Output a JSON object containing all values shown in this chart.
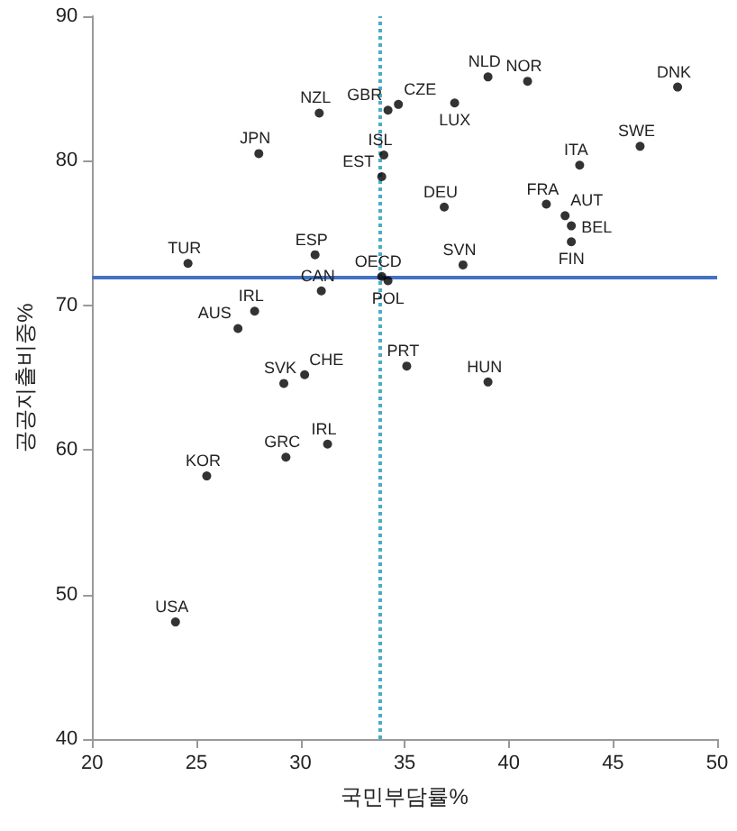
{
  "chart_data": {
    "type": "scatter",
    "xlabel": "국민부담률%",
    "ylabel": "공공지출비중%",
    "x": [
      24.6,
      30.9,
      28.0,
      34.2,
      34.7,
      34.0,
      33.9,
      30.7,
      31.0,
      33.9,
      34.2,
      27.8,
      27.0,
      29.2,
      30.2,
      35.1,
      29.3,
      31.3,
      25.5,
      24.0,
      37.4,
      39.0,
      40.9,
      48.1,
      46.3,
      43.4,
      36.9,
      41.8,
      42.7,
      43.0,
      43.0,
      37.8,
      39.0
    ],
    "values": [
      72.9,
      83.3,
      80.5,
      83.5,
      83.9,
      80.4,
      78.9,
      73.5,
      71.0,
      72.0,
      71.7,
      69.6,
      68.4,
      64.6,
      65.2,
      65.8,
      59.5,
      60.4,
      58.2,
      48.1,
      84.0,
      85.8,
      85.5,
      85.1,
      81.0,
      79.7,
      76.8,
      77.0,
      76.2,
      75.5,
      74.4,
      72.8,
      64.7
    ],
    "color": "#000000",
    "marker": "circle",
    "annotations": [
      {
        "text": "TUR",
        "x": 24.6,
        "y": 72.9
      },
      {
        "text": "NZL",
        "x": 30.9,
        "y": 83.3
      },
      {
        "text": "JPN",
        "x": 28.0,
        "y": 80.5
      },
      {
        "text": "GBR",
        "x": 34.2,
        "y": 83.5
      },
      {
        "text": "CZE",
        "x": 34.7,
        "y": 83.9
      },
      {
        "text": "ISL",
        "x": 34.0,
        "y": 80.4
      },
      {
        "text": "EST",
        "x": 33.9,
        "y": 78.9
      },
      {
        "text": "ESP",
        "x": 30.7,
        "y": 73.5
      },
      {
        "text": "CAN",
        "x": 31.0,
        "y": 71.0
      },
      {
        "text": "OECD",
        "x": 33.9,
        "y": 72.0
      },
      {
        "text": "POL",
        "x": 34.2,
        "y": 71.7
      },
      {
        "text": "IRL",
        "x": 27.8,
        "y": 69.6
      },
      {
        "text": "AUS",
        "x": 27.0,
        "y": 68.4
      },
      {
        "text": "SVK",
        "x": 29.2,
        "y": 64.6
      },
      {
        "text": "CHE",
        "x": 30.2,
        "y": 65.2
      },
      {
        "text": "PRT",
        "x": 35.1,
        "y": 65.8
      },
      {
        "text": "GRC",
        "x": 29.3,
        "y": 59.5
      },
      {
        "text": "IRL",
        "x": 31.3,
        "y": 60.4
      },
      {
        "text": "KOR",
        "x": 25.5,
        "y": 58.2
      },
      {
        "text": "USA",
        "x": 24.0,
        "y": 48.1
      },
      {
        "text": "LUX",
        "x": 37.4,
        "y": 84.0
      },
      {
        "text": "NLD",
        "x": 39.0,
        "y": 85.8
      },
      {
        "text": "NOR",
        "x": 40.9,
        "y": 85.5
      },
      {
        "text": "DNK",
        "x": 48.1,
        "y": 85.1
      },
      {
        "text": "SWE",
        "x": 46.3,
        "y": 81.0
      },
      {
        "text": "ITA",
        "x": 43.4,
        "y": 79.7
      },
      {
        "text": "DEU",
        "x": 36.9,
        "y": 76.8
      },
      {
        "text": "FRA",
        "x": 41.8,
        "y": 77.0
      },
      {
        "text": "AUT",
        "x": 42.7,
        "y": 76.2
      },
      {
        "text": "BEL",
        "x": 43.0,
        "y": 75.5
      },
      {
        "text": "FIN",
        "x": 43.0,
        "y": 74.4
      },
      {
        "text": "SVN",
        "x": 37.8,
        "y": 72.8
      },
      {
        "text": "HUN",
        "x": 39.0,
        "y": 64.7
      }
    ],
    "ref_lines": [
      {
        "axis": "y",
        "value": 72.0,
        "color": "#4472c4",
        "line_style": "solid"
      },
      {
        "axis": "x",
        "value": 33.8,
        "color": "#4bacc6",
        "line_style": "dotted"
      }
    ],
    "xlim": [
      20,
      50
    ],
    "xticks": [
      20,
      25,
      30,
      35,
      40,
      45,
      50
    ],
    "ylim": [
      40,
      90
    ],
    "yticks": [
      40,
      50,
      60,
      70,
      80,
      90
    ],
    "grid": false
  }
}
